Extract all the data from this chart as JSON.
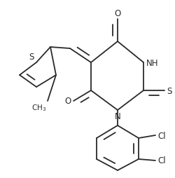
{
  "bg_color": "#ffffff",
  "line_color": "#2a2a2a",
  "line_width": 1.3,
  "font_size": 8.5,
  "figsize": [
    2.5,
    2.55
  ],
  "dpi": 100,
  "xlim": [
    0,
    250
  ],
  "ylim": [
    0,
    255
  ]
}
